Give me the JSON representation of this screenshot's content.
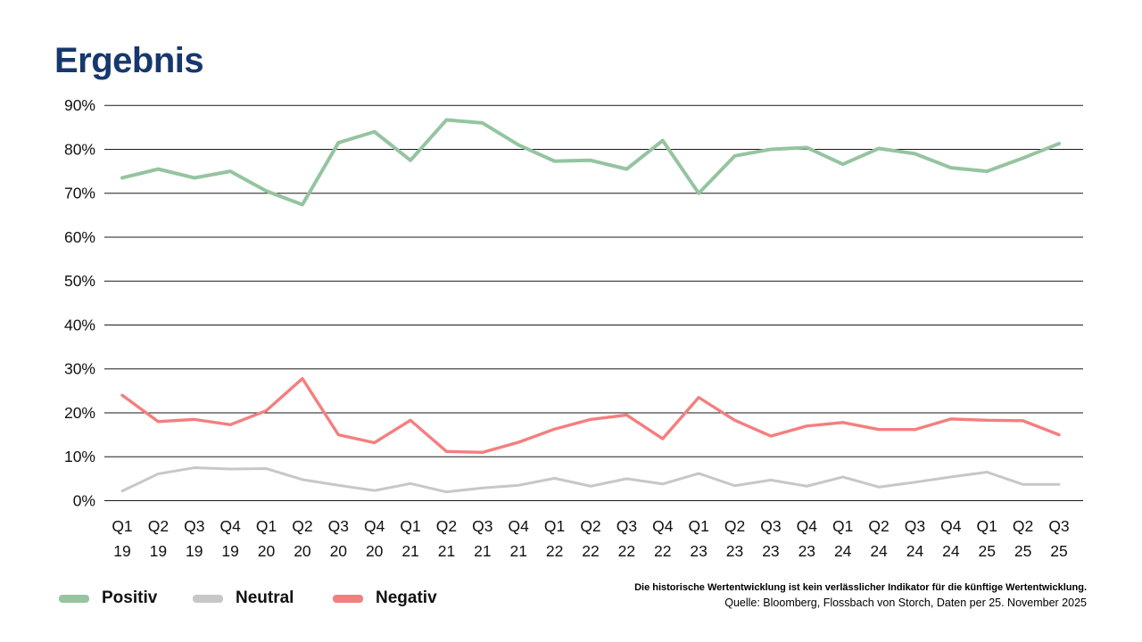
{
  "page": {
    "title": "Ergebnis"
  },
  "colors": {
    "title": "#17386d",
    "positiv": "#95c4a0",
    "neutral": "#c7c7c7",
    "negativ": "#f57e7e",
    "grid": "#1a1a1a",
    "text": "#111111"
  },
  "legend": {
    "items": [
      {
        "label": "Positiv",
        "color_key": "positiv"
      },
      {
        "label": "Neutral",
        "color_key": "neutral"
      },
      {
        "label": "Negativ",
        "color_key": "negativ"
      }
    ]
  },
  "footnote": {
    "disclaimer": "Die historische Wertentwicklung ist kein verlässlicher Indikator für die künftige Wertentwicklung.",
    "source": "Quelle: Bloomberg, Flossbach von Storch, Daten per 25. November 2025"
  },
  "chart_data": {
    "type": "line",
    "title": "Ergebnis",
    "categories": [
      "Q1 19",
      "Q2 19",
      "Q3 19",
      "Q4 19",
      "Q1 20",
      "Q2 20",
      "Q3 20",
      "Q4 20",
      "Q1 21",
      "Q2 21",
      "Q3 21",
      "Q4 21",
      "Q1 22",
      "Q2 22",
      "Q3 22",
      "Q4 22",
      "Q1 23",
      "Q2 23",
      "Q3 23",
      "Q4 23",
      "Q1 24",
      "Q2 24",
      "Q3 24",
      "Q4 24",
      "Q1 25",
      "Q2 25",
      "Q3 25"
    ],
    "series": [
      {
        "name": "Positiv",
        "color_key": "positiv",
        "values": [
          73.5,
          75.5,
          73.5,
          75,
          70.5,
          67.4,
          81.5,
          84,
          77.5,
          86.7,
          86,
          81,
          77.3,
          77.5,
          75.5,
          82,
          70,
          78.5,
          80,
          80.4,
          76.6,
          80.2,
          79,
          75.8,
          75,
          78,
          81.3
        ]
      },
      {
        "name": "Neutral",
        "color_key": "neutral",
        "values": [
          2.2,
          6.1,
          7.5,
          7.2,
          7.3,
          4.8,
          3.5,
          2.3,
          3.9,
          2,
          2.9,
          3.5,
          5.1,
          3.3,
          5,
          3.8,
          6.2,
          3.4,
          4.7,
          3.3,
          5.4,
          3.1,
          4.2,
          5.4,
          6.5,
          3.7,
          3.7
        ]
      },
      {
        "name": "Negativ",
        "color_key": "negativ",
        "values": [
          24,
          18,
          18.5,
          17.3,
          20.5,
          27.8,
          15,
          13.2,
          18.3,
          11.2,
          11,
          13.3,
          16.3,
          18.5,
          19.5,
          14.1,
          23.5,
          18.3,
          14.7,
          17,
          17.8,
          16.2,
          16.2,
          18.6,
          18.3,
          18.2,
          15
        ]
      }
    ],
    "ylim": [
      0,
      90
    ],
    "ytick_step": 10,
    "ytick_suffix": "%",
    "grid": "horizontal-only",
    "legend_position": "bottom-left"
  }
}
